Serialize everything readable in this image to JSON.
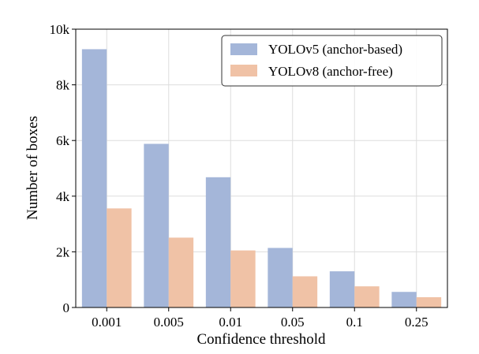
{
  "chart_data": {
    "type": "bar",
    "title": "",
    "xlabel": "Confidence threshold",
    "ylabel": "Number of boxes",
    "categories": [
      "0.001",
      "0.005",
      "0.01",
      "0.05",
      "0.1",
      "0.25"
    ],
    "series": [
      {
        "name": "YOLOv5 (anchor-based)",
        "color": "#a4b6d9",
        "values": [
          9280,
          5880,
          4680,
          2140,
          1300,
          560
        ]
      },
      {
        "name": "YOLOv8 (anchor-free)",
        "color": "#f0c2a6",
        "values": [
          3560,
          2510,
          2050,
          1120,
          760,
          370
        ]
      }
    ],
    "ylim": [
      0,
      10000
    ],
    "yticks": [
      0,
      2000,
      4000,
      6000,
      8000,
      10000
    ],
    "ytick_labels": [
      "0",
      "2k",
      "4k",
      "6k",
      "8k",
      "10k"
    ],
    "grid": true,
    "legend_position": "top-right"
  }
}
